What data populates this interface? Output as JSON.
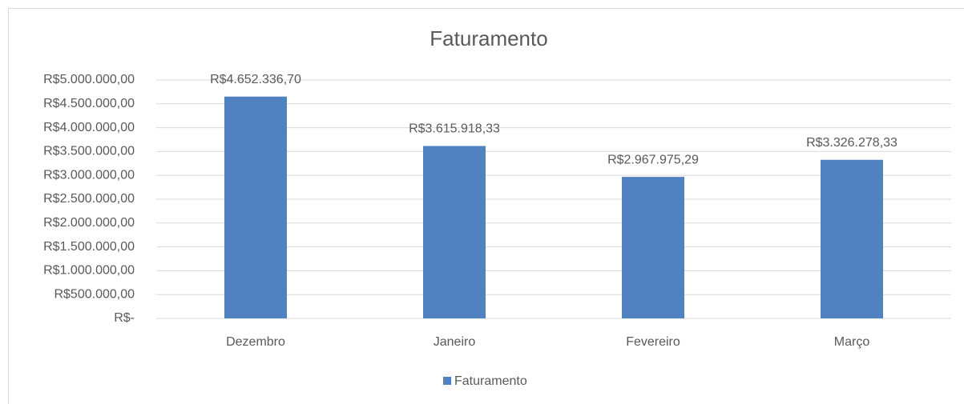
{
  "chart_data": {
    "type": "bar",
    "title": "Faturamento",
    "categories": [
      "Dezembro",
      "Janeiro",
      "Fevereiro",
      "Março"
    ],
    "series": [
      {
        "name": "Faturamento",
        "color": "#5181c1",
        "values": [
          4652336.7,
          3615918.33,
          2967975.29,
          3326278.33
        ],
        "value_labels": [
          "R$4.652.336,70",
          "R$3.615.918,33",
          "R$2.967.975,29",
          "R$3.326.278,33"
        ]
      }
    ],
    "ylim": [
      0,
      5000000
    ],
    "yticks": [
      {
        "value": 0,
        "label": "R$-"
      },
      {
        "value": 500000,
        "label": "R$500.000,00"
      },
      {
        "value": 1000000,
        "label": "R$1.000.000,00"
      },
      {
        "value": 1500000,
        "label": "R$1.500.000,00"
      },
      {
        "value": 2000000,
        "label": "R$2.000.000,00"
      },
      {
        "value": 2500000,
        "label": "R$2.500.000,00"
      },
      {
        "value": 3000000,
        "label": "R$3.000.000,00"
      },
      {
        "value": 3500000,
        "label": "R$3.500.000,00"
      },
      {
        "value": 4000000,
        "label": "R$4.000.000,00"
      },
      {
        "value": 4500000,
        "label": "R$4.500.000,00"
      },
      {
        "value": 5000000,
        "label": "R$5.000.000,00"
      }
    ],
    "grid": true,
    "legend": "bottom"
  }
}
